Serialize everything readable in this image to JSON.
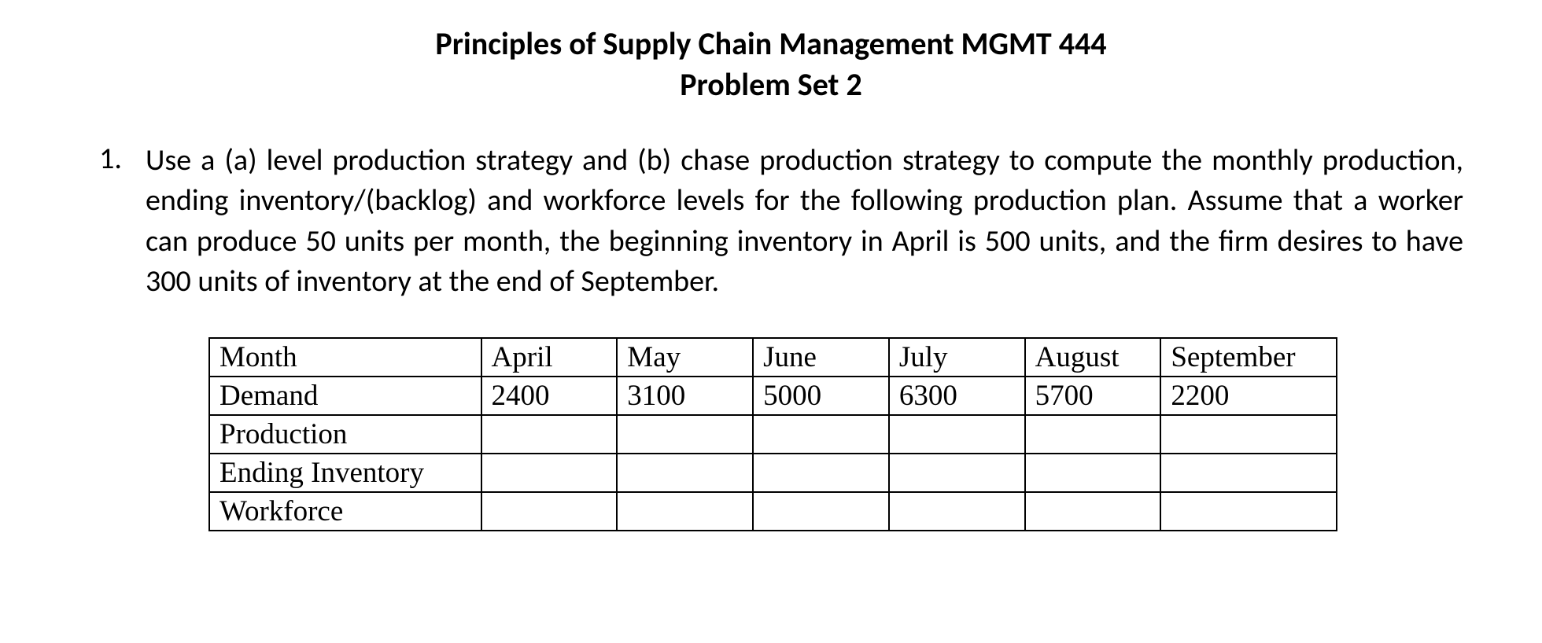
{
  "header": {
    "title_line1": "Principles of Supply Chain Management MGMT 444",
    "title_line2": "Problem Set 2"
  },
  "problem": {
    "number": "1.",
    "text": "Use a (a) level production strategy and (b) chase production strategy to compute the monthly production, ending inventory/(backlog) and workforce levels for the following production plan. Assume that a worker can produce 50 units per month, the beginning inventory in April is 500 units, and the firm desires to have 300 units of inventory at the end of September."
  },
  "table": {
    "row_labels": [
      "Month",
      "Demand",
      "Production",
      "Ending Inventory",
      "Workforce"
    ],
    "months": [
      "April",
      "May",
      "June",
      "July",
      "August",
      "September"
    ],
    "demand": [
      "2400",
      "3100",
      "5000",
      "6300",
      "5700",
      "2200"
    ],
    "production": [
      "",
      "",
      "",
      "",
      "",
      ""
    ],
    "ending_inventory": [
      "",
      "",
      "",
      "",
      "",
      ""
    ],
    "workforce": [
      "",
      "",
      "",
      "",
      "",
      ""
    ]
  }
}
